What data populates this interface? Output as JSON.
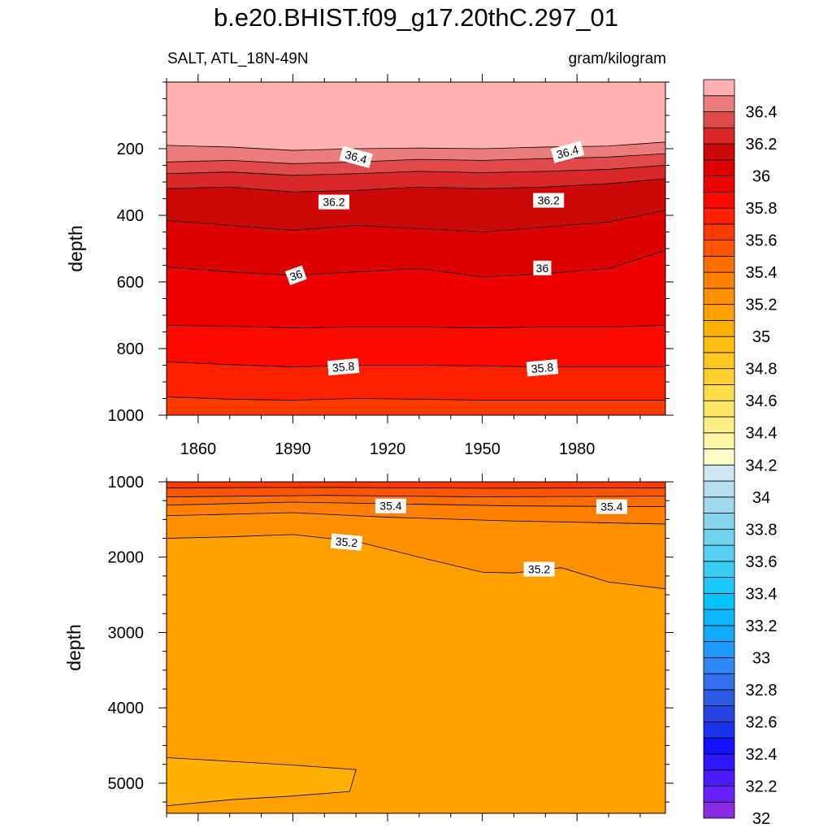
{
  "figure": {
    "title": "b.e20.BHIST.f09_g17.20thC.297_01",
    "left_subtitle": "SALT, ATL_18N-49N",
    "right_subtitle": "gram/kilogram"
  },
  "chart_data": [
    {
      "type": "contour",
      "panel": "upper",
      "ylabel": "depth",
      "xlim": [
        1850,
        2008
      ],
      "ylim": [
        1000,
        0
      ],
      "y_reversed": true,
      "x_ticks": [
        1860,
        1890,
        1920,
        1950,
        1980
      ],
      "y_ticks": [
        200,
        400,
        600,
        800,
        1000
      ],
      "contour_lines": [
        {
          "level": 36.5,
          "x": [
            1850,
            1870,
            1890,
            1910,
            1930,
            1950,
            1970,
            1990,
            2008
          ],
          "depth": [
            190,
            195,
            205,
            200,
            198,
            200,
            195,
            192,
            180
          ]
        },
        {
          "level": 36.4,
          "x": [
            1850,
            1870,
            1890,
            1910,
            1930,
            1950,
            1970,
            1990,
            2008
          ],
          "depth": [
            240,
            235,
            245,
            240,
            232,
            235,
            230,
            225,
            215
          ]
        },
        {
          "level": 36.3,
          "x": [
            1850,
            1870,
            1890,
            1910,
            1930,
            1950,
            1970,
            1990,
            2008
          ],
          "depth": [
            275,
            270,
            280,
            275,
            268,
            272,
            268,
            262,
            250
          ]
        },
        {
          "level": 36.2,
          "x": [
            1850,
            1870,
            1890,
            1910,
            1930,
            1950,
            1970,
            1990,
            2008
          ],
          "depth": [
            320,
            315,
            330,
            325,
            315,
            320,
            315,
            305,
            290
          ]
        },
        {
          "level": 36.1,
          "x": [
            1850,
            1870,
            1890,
            1910,
            1930,
            1950,
            1970,
            1990,
            2008
          ],
          "depth": [
            415,
            430,
            445,
            430,
            440,
            450,
            435,
            420,
            385
          ]
        },
        {
          "level": 36.0,
          "x": [
            1850,
            1870,
            1890,
            1910,
            1930,
            1950,
            1970,
            1990,
            2008
          ],
          "depth": [
            555,
            570,
            580,
            570,
            560,
            585,
            575,
            560,
            505
          ]
        },
        {
          "level": 35.9,
          "x": [
            1850,
            1870,
            1890,
            1910,
            1930,
            1950,
            1970,
            1990,
            2008
          ],
          "depth": [
            730,
            733,
            738,
            735,
            735,
            738,
            735,
            735,
            730
          ]
        },
        {
          "level": 35.8,
          "x": [
            1850,
            1870,
            1890,
            1910,
            1930,
            1950,
            1970,
            1990,
            2008
          ],
          "depth": [
            840,
            848,
            855,
            850,
            850,
            852,
            855,
            855,
            855
          ]
        },
        {
          "level": 35.7,
          "x": [
            1850,
            1870,
            1890,
            1910,
            1930,
            1950,
            1970,
            1990,
            2008
          ],
          "depth": [
            945,
            952,
            955,
            950,
            952,
            955,
            955,
            955,
            955
          ]
        }
      ],
      "line_labels": [
        {
          "text": "36.4",
          "x": 1910,
          "depth": 225,
          "angle": 15
        },
        {
          "text": "36.4",
          "x": 1977,
          "depth": 210,
          "angle": -15
        },
        {
          "text": "36.2",
          "x": 1903,
          "depth": 360,
          "angle": 0
        },
        {
          "text": "36.2",
          "x": 1971,
          "depth": 355,
          "angle": 0
        },
        {
          "text": "36",
          "x": 1891,
          "depth": 580,
          "angle": -20
        },
        {
          "text": "36",
          "x": 1969,
          "depth": 558,
          "angle": 0
        },
        {
          "text": "35.8",
          "x": 1906,
          "depth": 855,
          "angle": -5
        },
        {
          "text": "35.8",
          "x": 1969,
          "depth": 858,
          "angle": -5
        }
      ]
    },
    {
      "type": "contour",
      "panel": "lower",
      "ylabel": "depth",
      "xlim": [
        1850,
        2008
      ],
      "ylim": [
        5400,
        1000
      ],
      "y_reversed": true,
      "y_ticks": [
        1000,
        2000,
        3000,
        4000,
        5000
      ],
      "contour_lines": [
        {
          "level": 35.6,
          "x": [
            1850,
            1900,
            1950,
            2008
          ],
          "depth": [
            1080,
            1075,
            1085,
            1080
          ]
        },
        {
          "level": 35.5,
          "x": [
            1850,
            1900,
            1950,
            2008
          ],
          "depth": [
            1200,
            1180,
            1200,
            1190
          ]
        },
        {
          "level": 35.4,
          "x": [
            1850,
            1890,
            1920,
            1960,
            2008
          ],
          "depth": [
            1310,
            1270,
            1290,
            1320,
            1330
          ]
        },
        {
          "level": 35.3,
          "x": [
            1850,
            1890,
            1920,
            1960,
            2008
          ],
          "depth": [
            1450,
            1410,
            1470,
            1520,
            1560
          ]
        },
        {
          "level": 35.2,
          "x": [
            1850,
            1870,
            1890,
            1910,
            1930,
            1950,
            1960,
            1975,
            1990,
            2008
          ],
          "depth": [
            1750,
            1730,
            1700,
            1790,
            2000,
            2200,
            2210,
            2140,
            2330,
            2420
          ]
        },
        {
          "level": 35.1,
          "x": [
            1850,
            1870,
            1890,
            1910,
            1908,
            1890,
            1870,
            1850
          ],
          "depth": [
            4660,
            4710,
            4760,
            4820,
            5110,
            5170,
            5220,
            5300
          ]
        }
      ],
      "line_labels": [
        {
          "text": "35.4",
          "x": 1921,
          "depth": 1320,
          "angle": 0
        },
        {
          "text": "35.4",
          "x": 1991,
          "depth": 1330,
          "angle": 0
        },
        {
          "text": "35.2",
          "x": 1907,
          "depth": 1800,
          "angle": 5
        },
        {
          "text": "35.2",
          "x": 1968,
          "depth": 2160,
          "angle": 0
        }
      ]
    }
  ],
  "colorbar": {
    "levels": [
      32,
      32.1,
      32.2,
      32.3,
      32.4,
      32.5,
      32.6,
      32.7,
      32.8,
      32.9,
      33,
      33.1,
      33.2,
      33.3,
      33.4,
      33.5,
      33.6,
      33.7,
      33.8,
      33.9,
      34,
      34.1,
      34.2,
      34.3,
      34.4,
      34.5,
      34.6,
      34.7,
      34.8,
      34.9,
      35,
      35.1,
      35.2,
      35.3,
      35.4,
      35.5,
      35.6,
      35.7,
      35.8,
      35.9,
      36,
      36.1,
      36.2,
      36.3,
      36.4,
      36.5
    ],
    "labeled_levels": [
      "32",
      "32.2",
      "32.4",
      "32.6",
      "32.8",
      "33",
      "33.2",
      "33.4",
      "33.6",
      "33.8",
      "34",
      "34.2",
      "34.4",
      "34.6",
      "34.8",
      "35",
      "35.2",
      "35.4",
      "35.6",
      "35.8",
      "36",
      "36.2",
      "36.4"
    ],
    "colors": [
      "#8A2BE2",
      "#6A1FFF",
      "#4B1AFF",
      "#2D17FF",
      "#1111FF",
      "#1A33EE",
      "#2445E0",
      "#2E5BE6",
      "#3470EE",
      "#2E88F5",
      "#1E9AFF",
      "#12AAFF",
      "#0BB6FF",
      "#05C2FF",
      "#1BC8FA",
      "#38CCF4",
      "#55CFF2",
      "#6FD2F0",
      "#88D5EE",
      "#A0D8EE",
      "#B8DFF0",
      "#CFE7F2",
      "#FFFCC8",
      "#FFF5A5",
      "#FFEE85",
      "#FFE565",
      "#FFDC48",
      "#FFD230",
      "#FFC81E",
      "#FFBD12",
      "#FFB000",
      "#FFA000",
      "#FF9000",
      "#FF8000",
      "#FF6E00",
      "#FF5400",
      "#FF3A00",
      "#FF2000",
      "#FF0800",
      "#F00000",
      "#DD0000",
      "#CC0808",
      "#D82828",
      "#E04A4A",
      "#EC7C7C",
      "#FFB0B0"
    ]
  }
}
